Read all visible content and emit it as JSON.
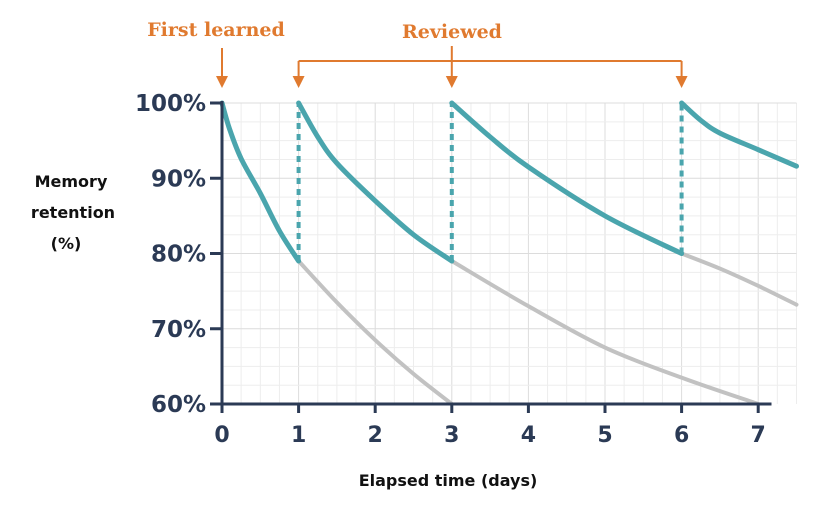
{
  "chart_data": {
    "type": "line",
    "title": "",
    "xlabel": "Elapsed time (days)",
    "ylabel": [
      "Memory",
      "retention",
      "(%)"
    ],
    "xlim": [
      0,
      7.5
    ],
    "ylim": [
      60,
      100
    ],
    "x_ticks": [
      "0",
      "1",
      "2",
      "3",
      "4",
      "5",
      "6",
      "7"
    ],
    "x_tick_values": [
      0,
      1,
      2,
      3,
      4,
      5,
      6,
      7
    ],
    "y_ticks": [
      "100%",
      "90%",
      "80%",
      "70%",
      "60%"
    ],
    "y_tick_values": [
      100,
      90,
      80,
      70,
      60
    ],
    "grid": true,
    "colors": {
      "reviewed": "#4aa5ad",
      "forgetting": "#c2c2c2",
      "annotation": "#e07a2f",
      "axis": "#2b3a55"
    },
    "series": [
      {
        "style": "reviewed",
        "x": [
          0,
          0.1,
          0.25,
          0.5,
          0.75,
          1
        ],
        "y": [
          100,
          96.5,
          92.6,
          88,
          83,
          79
        ]
      },
      {
        "style": "forgetting",
        "x": [
          1,
          1.5,
          2,
          2.5,
          3
        ],
        "y": [
          79,
          73.5,
          68.5,
          64,
          60
        ]
      },
      {
        "style": "reviewed",
        "x": [
          1,
          1.25,
          1.5,
          2,
          2.5,
          3
        ],
        "y": [
          100,
          95.5,
          92,
          87,
          82.5,
          79
        ]
      },
      {
        "style": "forgetting",
        "x": [
          3,
          4,
          5,
          6,
          7
        ],
        "y": [
          79,
          73,
          67.5,
          63.5,
          60
        ]
      },
      {
        "style": "reviewed",
        "x": [
          3,
          3.5,
          4,
          5,
          6
        ],
        "y": [
          100,
          95.5,
          91.5,
          85,
          80
        ]
      },
      {
        "style": "forgetting",
        "x": [
          6,
          6.5,
          7,
          7.5
        ],
        "y": [
          80,
          78,
          75.7,
          73.2
        ]
      },
      {
        "style": "reviewed",
        "x": [
          6,
          6.25,
          6.5,
          7,
          7.5
        ],
        "y": [
          100,
          97.7,
          96,
          93.8,
          91.6
        ]
      }
    ],
    "review_drops": [
      {
        "x": 1,
        "from": 79,
        "to": 100
      },
      {
        "x": 3,
        "from": 79,
        "to": 100
      },
      {
        "x": 6,
        "from": 80,
        "to": 100
      }
    ],
    "annotations": {
      "first_learned": {
        "text": "First learned",
        "x": 0
      },
      "reviewed": {
        "text": "Reviewed",
        "x": [
          1,
          3,
          6
        ]
      }
    }
  }
}
